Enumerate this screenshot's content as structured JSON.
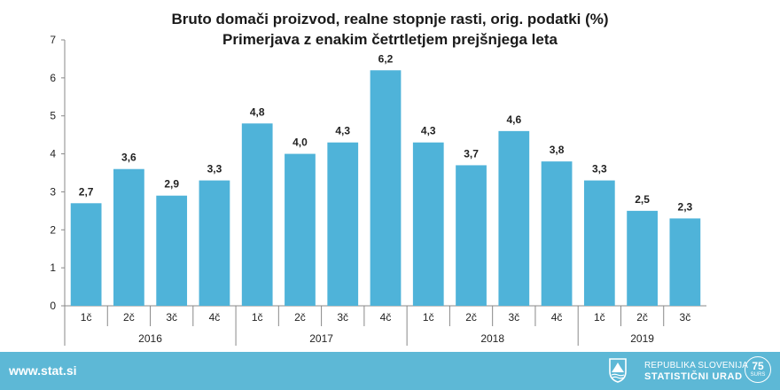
{
  "chart_data": {
    "type": "bar",
    "title": "Bruto domači proizvod, realne stopnje rasti, orig. podatki (%)",
    "subtitle": "Primerjava z enakim četrtletjem prejšnjega leta",
    "ylim": [
      0,
      7
    ],
    "yticks": [
      "0",
      "1",
      "2",
      "3",
      "4",
      "5",
      "6",
      "7"
    ],
    "bar_color": "#4fb3d9",
    "grid": false,
    "groups": [
      {
        "label": "2016",
        "categories": [
          "1č",
          "2č",
          "3č",
          "4č"
        ],
        "values": [
          2.7,
          3.6,
          2.9,
          3.3
        ],
        "labels": [
          "2,7",
          "3,6",
          "2,9",
          "3,3"
        ]
      },
      {
        "label": "2017",
        "categories": [
          "1č",
          "2č",
          "3č",
          "4č"
        ],
        "values": [
          4.8,
          4.0,
          4.3,
          6.2
        ],
        "labels": [
          "4,8",
          "4,0",
          "4,3",
          "6,2"
        ]
      },
      {
        "label": "2018",
        "categories": [
          "1č",
          "2č",
          "3č",
          "4č"
        ],
        "values": [
          4.3,
          3.7,
          4.6,
          3.8
        ],
        "labels": [
          "4,3",
          "3,7",
          "4,6",
          "3,8"
        ]
      },
      {
        "label": "2019",
        "categories": [
          "1č",
          "2č",
          "3č"
        ],
        "values": [
          3.3,
          2.5,
          2.3
        ],
        "labels": [
          "3,3",
          "2,5",
          "2,3"
        ]
      }
    ]
  },
  "footer": {
    "url": "www.stat.si",
    "org_line1": "REPUBLIKA SLOVENIJA",
    "org_line2": "STATISTIČNI URAD",
    "badge_number": "75",
    "badge_text": "SURS",
    "background": "#5db8d6"
  }
}
